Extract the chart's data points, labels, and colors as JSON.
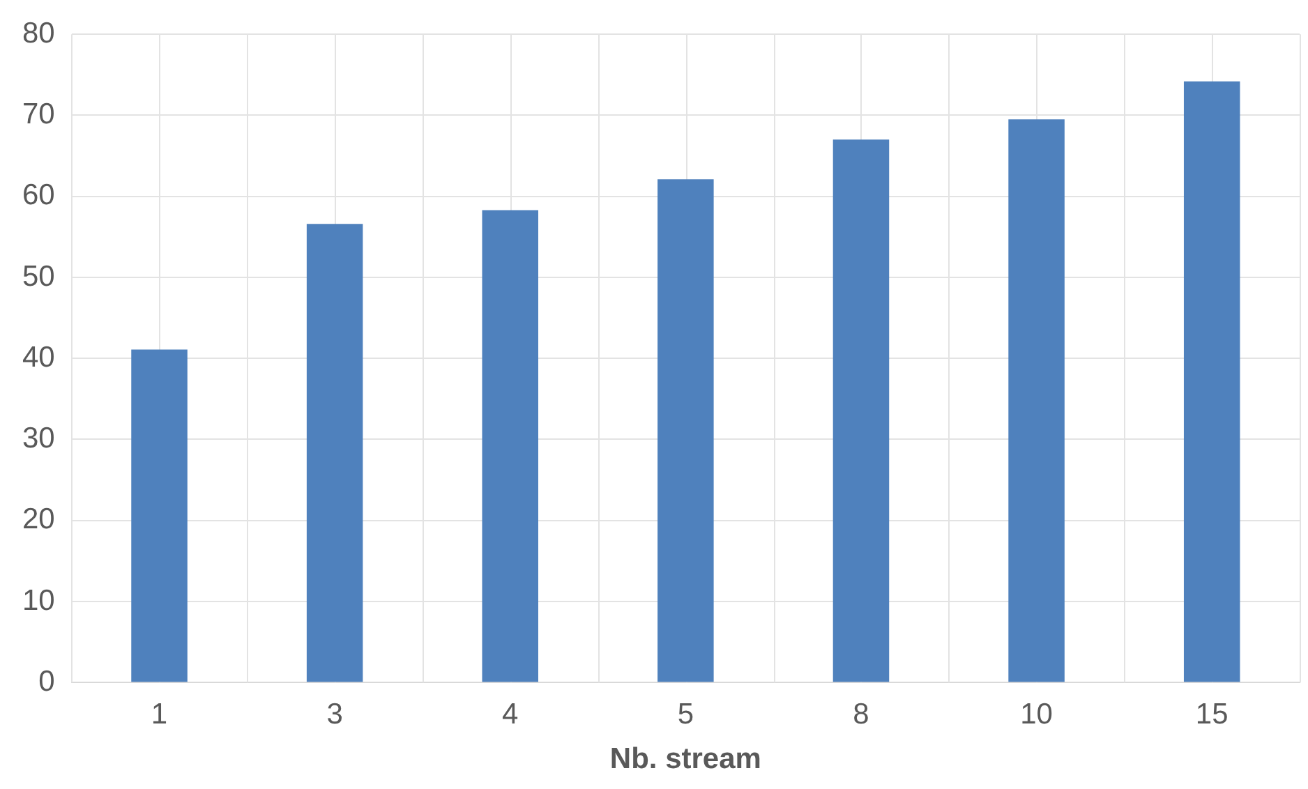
{
  "chart_data": {
    "type": "bar",
    "xlabel": "Nb. stream",
    "categories": [
      "1",
      "3",
      "4",
      "5",
      "8",
      "10",
      "15"
    ],
    "values": [
      41.1,
      56.6,
      58.3,
      62.1,
      67.0,
      69.5,
      74.2
    ],
    "color": "#4f81bd",
    "ylim": [
      0,
      80
    ],
    "yticks": [
      0,
      10,
      20,
      30,
      40,
      50,
      60,
      70,
      80
    ],
    "grid": true,
    "legend": false
  }
}
